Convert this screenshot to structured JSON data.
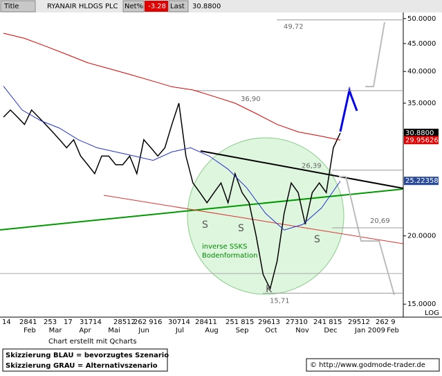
{
  "header": {
    "title_label": "Title",
    "symbol": "RYANAIR HLDGS PLC",
    "net_label": "Net%",
    "net_value": "-3.28",
    "last_label": "Last",
    "last_value": "30.8800"
  },
  "chart_data": {
    "type": "line",
    "log_scale": true,
    "log_label": "LOG",
    "ylim": [
      14.2,
      51.3
    ],
    "yticks": [
      {
        "value": 50,
        "label": "50.0000"
      },
      {
        "value": 45,
        "label": "45.0000"
      },
      {
        "value": 40,
        "label": "40.0000"
      },
      {
        "value": 35,
        "label": "35.0000"
      },
      {
        "value": 20,
        "label": "20.0000"
      },
      {
        "value": 15,
        "label": "15.0000"
      }
    ],
    "series": [
      {
        "color": "#000000",
        "values": [
          33,
          34,
          33,
          32,
          34,
          33,
          32,
          31,
          30,
          29,
          30,
          28,
          27,
          26,
          28,
          28,
          27,
          27,
          28,
          26,
          30,
          29,
          28,
          29,
          32,
          35,
          28,
          25,
          24,
          23,
          24,
          25,
          23,
          26,
          24,
          23,
          20,
          17,
          16,
          18,
          22,
          25,
          24,
          21,
          24,
          25,
          24,
          29,
          30.88
        ]
      },
      {
        "color": "#dd0000",
        "values": [
          47,
          46,
          44.5,
          43,
          41.5,
          40.5,
          39.5,
          38.5,
          37.5,
          37,
          36,
          35,
          33.5,
          32,
          31,
          30.5,
          29.96
        ]
      },
      {
        "color": "#2233cc",
        "values": [
          37.6,
          34,
          32.5,
          31.5,
          30,
          29,
          28.5,
          28,
          27.5,
          28.5,
          29,
          28,
          26.5,
          24.5,
          22,
          20.5,
          21,
          22.5,
          25.2
        ]
      }
    ],
    "price_tags": [
      {
        "value": 30.88,
        "label": "30.8800",
        "color": "#000000"
      },
      {
        "value": 29.95626,
        "label": "29.95626",
        "color": "#dd0000"
      },
      {
        "value": 25.22358,
        "label": "25.22358",
        "color": "#2a4a9a"
      }
    ],
    "annotations": [
      {
        "value": 49.72,
        "label": "49,72"
      },
      {
        "value": 36.9,
        "label": "36,90"
      },
      {
        "value": 26.39,
        "label": "26,39"
      },
      {
        "value": 20.69,
        "label": "20,69"
      },
      {
        "value": 15.71,
        "label": "15,71"
      }
    ],
    "pattern_labels": [
      "S",
      "S",
      "S",
      "K"
    ],
    "pattern_text": [
      "inverse SSKS",
      "Bodenformation"
    ],
    "day_labels": [
      "14",
      "2841",
      "253",
      "17",
      "31714",
      "28512",
      "262 916",
      "30714",
      "28411",
      "251 815",
      "29613",
      "27310",
      "241 815",
      "29512",
      "262 9"
    ],
    "month_labels": [
      "Feb",
      "Mar",
      "Apr",
      "Mai",
      "Jun",
      "Jul",
      "Aug",
      "Sep",
      "Oct",
      "Nov",
      "Dec",
      "Jan 2009",
      "Feb"
    ]
  },
  "footer": {
    "credit": "Chart erstellt mit Qcharts",
    "legend_blue": "Skizzierung BLAU = bevorzugtes Szenario",
    "legend_grey": "Skizzierung GRAU = Alternativszenario",
    "copyright": "© http://www.godmode-trader.de"
  }
}
